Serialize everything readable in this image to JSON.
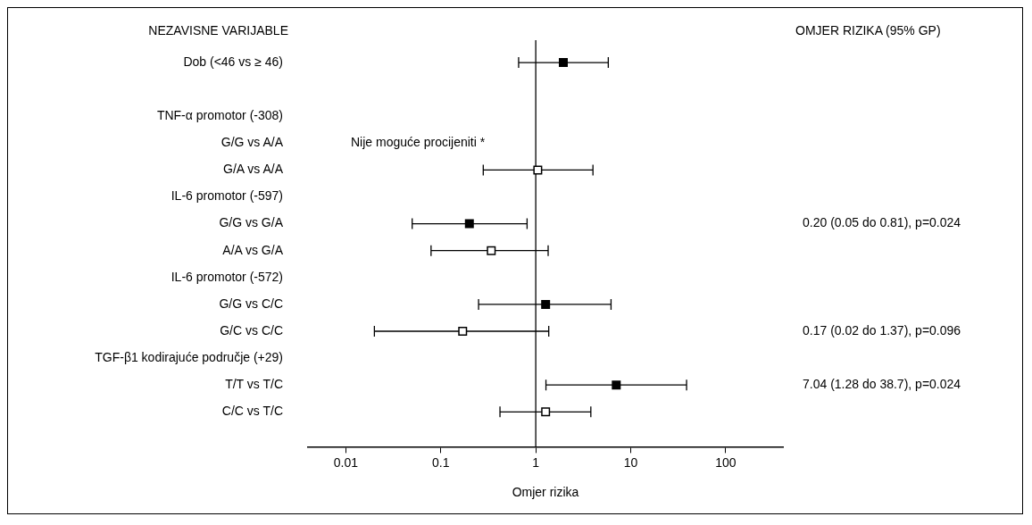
{
  "chart_data": {
    "type": "scatter",
    "orientation": "horizontal",
    "xlabel": "Omjer rizika",
    "ylabel": "NEZAVISNE VARIJABLE",
    "categories": [
      "Dob (<46 vs ≥ 46)",
      null,
      "TNF-α promotor (-308)",
      "G/G vs A/A",
      "G/A vs A/A",
      "IL-6 promotor (-597)",
      "G/G vs G/A",
      "A/A vs G/A",
      "IL-6 promotor (-572)",
      "G/G vs C/C",
      "G/C vs C/C",
      "TGF-β1 kodirajuće područje (+29)",
      "T/T vs T/C",
      "C/C vs T/C"
    ],
    "series": [
      {
        "color": "#000000",
        "values": [
          1.95,
          null,
          null,
          null,
          null,
          null,
          0.2,
          null,
          null,
          1.27,
          null,
          null,
          7.04,
          null
        ],
        "errors": [
          [
            0.66,
            5.8
          ],
          null,
          null,
          null,
          null,
          null,
          [
            0.05,
            0.81
          ],
          null,
          null,
          [
            0.25,
            6.2
          ],
          null,
          null,
          [
            1.28,
            38.7
          ],
          null
        ]
      },
      {
        "color": "#ffffff",
        "values": [
          null,
          null,
          null,
          null,
          1.05,
          null,
          null,
          0.34,
          null,
          null,
          0.17,
          null,
          null,
          1.27
        ],
        "errors": [
          null,
          null,
          null,
          null,
          [
            0.28,
            4.0
          ],
          null,
          null,
          [
            0.079,
            1.35
          ],
          null,
          null,
          [
            0.02,
            1.37
          ],
          null,
          null,
          [
            0.42,
            3.8
          ]
        ]
      }
    ],
    "xlim": [
      0.004,
      400
    ],
    "xticks": [
      0.01,
      0.1,
      1,
      10,
      100
    ],
    "log": "x",
    "grid": false,
    "legend": false,
    "marker": "square",
    "ref_lines": [
      {
        "axis": "x",
        "value": 1
      }
    ],
    "y2_categories": [
      null,
      null,
      null,
      null,
      null,
      null,
      "0.20 (0.05 do 0.81), p=0.024",
      null,
      null,
      null,
      "0.17 (0.02 do 1.37), p=0.096",
      null,
      "7.04 (1.28 do 38.7), p=0.024",
      null
    ],
    "annotations": [
      "OMJER RIZIKA (95% GP)",
      "Nije moguće procijeniti *"
    ]
  }
}
